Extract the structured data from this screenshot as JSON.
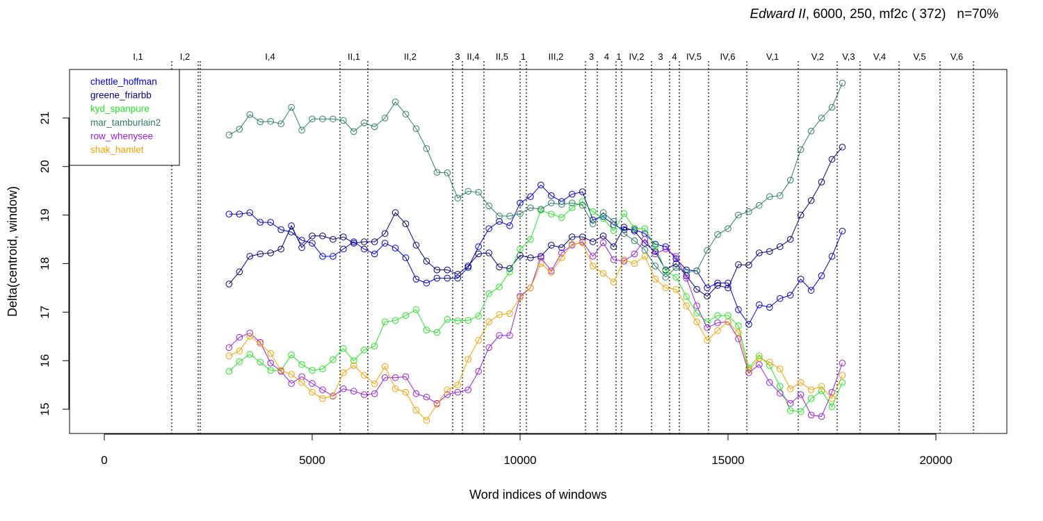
{
  "chart_data": {
    "type": "line",
    "title_italic": "Edward II",
    "title_rest": ", 6000, 250, mf2c ( 372)   n=70%",
    "xlabel": "Word indices of windows",
    "ylabel": "Delta(centroid, window)",
    "xlim": [
      -836,
      21706
    ],
    "ylim": [
      14.5,
      22.0
    ],
    "xticks": [
      0,
      5000,
      10000,
      15000,
      20000
    ],
    "yticks": [
      15,
      16,
      17,
      18,
      19,
      20,
      21
    ],
    "legend": "top-left",
    "x": [
      3000,
      3250,
      3500,
      3750,
      4000,
      4250,
      4500,
      4750,
      5000,
      5250,
      5500,
      5750,
      6000,
      6250,
      6500,
      6750,
      7000,
      7250,
      7500,
      7750,
      8000,
      8250,
      8500,
      8750,
      9000,
      9250,
      9500,
      9750,
      10000,
      10250,
      10500,
      10750,
      11000,
      11250,
      11500,
      11750,
      12000,
      12250,
      12500,
      12750,
      13000,
      13250,
      13500,
      13750,
      14000,
      14250,
      14500,
      14750,
      15000,
      15250,
      15500,
      15750,
      16000,
      16250,
      16500,
      16750,
      17000,
      17250,
      17500,
      17750
    ],
    "series": [
      {
        "name": "chettle_hoffman",
        "color": "#0000cd",
        "values": [
          19.02,
          19.02,
          19.05,
          18.85,
          18.85,
          18.7,
          18.65,
          18.48,
          18.42,
          18.15,
          18.15,
          18.3,
          18.45,
          18.3,
          18.2,
          18.42,
          18.32,
          18.12,
          17.68,
          17.6,
          17.7,
          17.7,
          17.7,
          17.92,
          18.35,
          18.72,
          18.87,
          18.78,
          19.25,
          19.38,
          19.62,
          19.4,
          19.28,
          19.43,
          19.48,
          18.9,
          18.97,
          18.8,
          18.7,
          18.7,
          18.62,
          18.4,
          18.35,
          18.1,
          17.87,
          17.85,
          17.5,
          17.6,
          17.6,
          17.05,
          16.75,
          17.15,
          17.1,
          17.28,
          17.35,
          17.68,
          17.45,
          17.75,
          18.15,
          18.67
        ]
      },
      {
        "name": "greene_friarbb",
        "color": "#00007f",
        "values": [
          17.58,
          17.83,
          18.15,
          18.2,
          18.22,
          18.3,
          18.78,
          18.33,
          18.57,
          18.57,
          18.5,
          18.55,
          18.42,
          18.45,
          18.45,
          18.62,
          19.05,
          18.82,
          18.38,
          18.05,
          17.87,
          17.87,
          17.78,
          17.95,
          18.2,
          18.22,
          17.93,
          17.9,
          18.17,
          18.12,
          18.15,
          18.38,
          18.33,
          18.55,
          18.55,
          18.45,
          18.57,
          18.35,
          18.75,
          18.67,
          18.42,
          18.25,
          17.87,
          18.0,
          17.75,
          17.47,
          17.33,
          17.55,
          17.5,
          17.98,
          17.97,
          18.22,
          18.25,
          18.35,
          18.5,
          19.0,
          19.3,
          19.68,
          20.15,
          20.4
        ]
      },
      {
        "name": "kyd_spanpure",
        "color": "#22e622",
        "values": [
          15.78,
          15.98,
          16.13,
          15.97,
          15.8,
          15.8,
          16.12,
          15.92,
          15.8,
          15.83,
          16.02,
          16.25,
          16.0,
          16.22,
          16.3,
          16.8,
          16.83,
          16.93,
          17.05,
          16.63,
          16.58,
          16.85,
          16.82,
          16.83,
          16.92,
          17.38,
          17.52,
          17.83,
          18.3,
          18.5,
          19.1,
          19.02,
          18.95,
          19.15,
          19.28,
          19.07,
          18.93,
          18.68,
          19.03,
          18.73,
          18.72,
          18.35,
          17.85,
          17.72,
          17.32,
          16.98,
          16.8,
          16.93,
          16.93,
          16.72,
          15.85,
          16.1,
          15.9,
          15.47,
          14.97,
          14.95,
          15.22,
          15.38,
          15.05,
          15.55
        ]
      },
      {
        "name": "mar_tamburlain2",
        "color": "#2e7d64",
        "values": [
          20.65,
          20.77,
          21.07,
          20.92,
          20.93,
          20.88,
          21.22,
          20.75,
          20.98,
          20.98,
          20.98,
          20.95,
          20.72,
          20.9,
          20.82,
          21.0,
          21.33,
          21.08,
          20.78,
          20.37,
          19.88,
          19.87,
          19.35,
          19.49,
          19.47,
          19.19,
          18.98,
          18.98,
          19.03,
          19.15,
          19.12,
          19.25,
          19.22,
          19.25,
          19.2,
          18.82,
          19.05,
          18.87,
          18.62,
          18.47,
          18.28,
          17.95,
          17.72,
          17.92,
          17.82,
          17.85,
          18.27,
          18.6,
          18.72,
          19.0,
          19.07,
          19.2,
          19.38,
          19.4,
          19.72,
          20.35,
          20.73,
          21.0,
          21.22,
          21.72
        ]
      },
      {
        "name": "row_whenysee",
        "color": "#9a1ee0",
        "values": [
          16.27,
          16.48,
          16.57,
          16.38,
          15.95,
          15.78,
          15.53,
          15.67,
          15.53,
          15.4,
          15.27,
          15.42,
          15.37,
          15.3,
          15.32,
          15.65,
          15.65,
          15.67,
          15.32,
          15.25,
          15.12,
          15.3,
          15.35,
          15.4,
          15.78,
          16.27,
          16.52,
          16.52,
          17.33,
          17.5,
          18.12,
          17.85,
          18.22,
          18.38,
          18.45,
          18.15,
          18.43,
          18.08,
          18.05,
          18.2,
          18.5,
          18.2,
          18.3,
          18.15,
          17.7,
          17.13,
          16.68,
          16.78,
          16.8,
          16.45,
          15.75,
          15.92,
          15.55,
          15.33,
          15.12,
          15.3,
          14.88,
          14.85,
          15.35,
          15.95
        ]
      },
      {
        "name": "shak_hamlet",
        "color": "#f5a000",
        "values": [
          16.1,
          16.2,
          16.5,
          16.35,
          16.15,
          15.8,
          15.72,
          15.55,
          15.35,
          15.22,
          15.28,
          15.75,
          15.9,
          15.7,
          15.52,
          15.88,
          15.42,
          15.35,
          14.98,
          14.77,
          15.1,
          15.4,
          15.5,
          16.03,
          16.42,
          16.8,
          16.95,
          16.97,
          17.3,
          17.5,
          18.0,
          17.82,
          18.12,
          18.4,
          18.43,
          17.95,
          17.8,
          17.62,
          18.08,
          18.0,
          18.15,
          17.68,
          17.5,
          17.47,
          17.13,
          16.8,
          16.42,
          16.62,
          16.8,
          16.58,
          15.8,
          16.05,
          15.97,
          15.83,
          15.42,
          15.55,
          15.4,
          15.47,
          15.22,
          15.7
        ]
      }
    ],
    "scenes": {
      "labels": [
        "I,1",
        "I,2",
        null,
        "I,4",
        "II,1",
        "II,2",
        "3",
        "II,4",
        "II,5",
        "1",
        "III,2",
        "3",
        "4",
        "1",
        "IV,2",
        "3",
        "4",
        "IV,5",
        "IV,6",
        "V,1",
        "V,2",
        "V,3",
        "V,4",
        "V,5",
        "V,6"
      ],
      "ends": [
        1622,
        2258,
        2308,
        5669,
        6338,
        8378,
        8612,
        9130,
        10000,
        10151,
        11572,
        11856,
        12308,
        12441,
        13161,
        13595,
        13829,
        14532,
        15452,
        16689,
        17625,
        18177,
        19114,
        20100,
        20903
      ]
    }
  }
}
